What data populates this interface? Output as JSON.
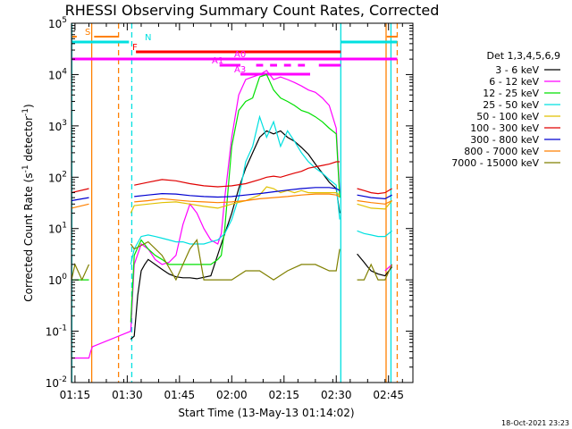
{
  "chart_data": {
    "type": "line",
    "title": "RHESSI Observing Summary Count Rates, Corrected",
    "xlabel": "Start Time (13-May-13 01:14:02)",
    "ylabel_prefix": "Corrected Count Rate (s",
    "ylabel_sup": "-1",
    "ylabel_suffix": " detector",
    "ylabel_close": ")",
    "yscale": "log",
    "xlim_minutes": [
      0,
      98
    ],
    "ylim": [
      0.01,
      100000
    ],
    "x_tick_labels": [
      "01:15",
      "01:30",
      "01:45",
      "02:00",
      "02:15",
      "02:30",
      "02:45"
    ],
    "x_tick_minutes": [
      1,
      16,
      31,
      46,
      61,
      76,
      91
    ],
    "y_tick_labels": [
      {
        "base": "10",
        "exp": "-2"
      },
      {
        "base": "10",
        "exp": "-1"
      },
      {
        "base": "10",
        "exp": "0"
      },
      {
        "base": "10",
        "exp": "1"
      },
      {
        "base": "10",
        "exp": "2"
      },
      {
        "base": "10",
        "exp": "3"
      },
      {
        "base": "10",
        "exp": "4"
      },
      {
        "base": "10",
        "exp": "5"
      }
    ],
    "legend_title": "Det 1,3,4,5,6,9",
    "series": [
      {
        "name": "3 - 6 keV",
        "color": "#000000",
        "x": [
          0,
          6,
          7,
          17,
          18,
          19,
          20,
          21,
          22,
          26,
          28,
          30,
          32,
          34,
          36,
          40,
          43,
          46,
          48,
          50,
          52,
          54,
          56,
          58,
          60,
          62,
          64,
          66,
          68,
          70,
          72,
          74,
          76,
          77,
          78,
          80,
          82,
          84,
          85,
          86,
          88,
          90,
          92,
          95
        ],
        "y": [
          null,
          null,
          null,
          0.07,
          0.08,
          0.5,
          1.5,
          2.0,
          2.5,
          1.6,
          1.3,
          1.15,
          1.1,
          1.1,
          1.05,
          1.2,
          5,
          20,
          60,
          150,
          300,
          600,
          800,
          700,
          800,
          600,
          500,
          380,
          280,
          180,
          120,
          80,
          60,
          20,
          null,
          null,
          3.2,
          2.2,
          1.8,
          1.5,
          1.3,
          1.2,
          1.8,
          null
        ]
      },
      {
        "name": "6 - 12 keV",
        "color": "#ff00ff",
        "x": [
          0,
          1,
          5,
          5.5,
          6,
          17,
          18,
          20,
          22,
          24,
          26,
          28,
          30,
          32,
          34,
          36,
          38,
          40,
          42,
          43,
          44,
          46,
          48,
          50,
          52,
          54,
          56,
          58,
          60,
          62,
          64,
          66,
          68,
          70,
          72,
          74,
          76,
          77,
          78,
          80,
          84,
          90,
          92
        ],
        "y": [
          0.03,
          0.03,
          0.03,
          0.04,
          0.05,
          0.1,
          2,
          5,
          4,
          2.5,
          2,
          2.2,
          3,
          12,
          30,
          20,
          10,
          6,
          5,
          8,
          40,
          600,
          4000,
          8000,
          9000,
          10000,
          12000,
          8000,
          9000,
          8000,
          7000,
          6000,
          5000,
          4500,
          3500,
          2500,
          900,
          50,
          null,
          null,
          null,
          1.5,
          2
        ]
      },
      {
        "name": "12 - 25 keV",
        "color": "#00e000",
        "x": [
          0,
          1,
          5,
          5.5,
          6,
          17,
          18,
          20,
          22,
          24,
          26,
          28,
          30,
          32,
          34,
          36,
          38,
          40,
          42,
          43,
          44,
          46,
          48,
          50,
          52,
          54,
          56,
          58,
          60,
          62,
          64,
          66,
          68,
          70,
          72,
          74,
          76,
          77
        ],
        "y": [
          1,
          1,
          1,
          null,
          null,
          0.15,
          3,
          6,
          4,
          3,
          2.5,
          2,
          2,
          2,
          2,
          2,
          2,
          2,
          2.5,
          3,
          10,
          400,
          2000,
          3000,
          3500,
          9000,
          10000,
          5000,
          3500,
          3000,
          2500,
          2000,
          1800,
          1500,
          1200,
          900,
          700,
          40
        ]
      },
      {
        "name": "25 - 50 keV",
        "color": "#00e0e0",
        "x": [
          17,
          18,
          20,
          22,
          24,
          26,
          28,
          30,
          32,
          34,
          36,
          38,
          40,
          42,
          44,
          46,
          48,
          50,
          52,
          54,
          56,
          58,
          60,
          62,
          64,
          66,
          68,
          70,
          72,
          74,
          76,
          77,
          78,
          80,
          82,
          84,
          86,
          88,
          90,
          92
        ],
        "y": [
          2,
          4,
          7,
          7.5,
          7,
          6.5,
          6,
          5.5,
          5.5,
          5,
          5,
          5,
          5.5,
          6,
          8,
          15,
          40,
          200,
          400,
          1500,
          600,
          1200,
          400,
          800,
          500,
          300,
          200,
          150,
          120,
          90,
          70,
          15,
          null,
          null,
          9,
          8,
          7.5,
          7,
          7,
          9
        ]
      },
      {
        "name": "50 - 100 keV",
        "color": "#e0c000",
        "x": [
          17,
          18,
          22,
          26,
          30,
          34,
          38,
          42,
          46,
          50,
          54,
          56,
          58,
          60,
          62,
          64,
          66,
          68,
          70,
          72,
          74,
          76,
          77,
          78,
          80,
          82,
          86,
          90,
          92
        ],
        "y": [
          20,
          28,
          30,
          32,
          33,
          30,
          27,
          25,
          30,
          35,
          45,
          65,
          60,
          50,
          55,
          50,
          55,
          50,
          50,
          50,
          50,
          50,
          45,
          null,
          null,
          30,
          25,
          24,
          35
        ]
      },
      {
        "name": "100 - 300 keV",
        "color": "#e00000",
        "x": [
          0,
          5,
          6,
          17,
          18,
          22,
          26,
          30,
          34,
          38,
          42,
          46,
          50,
          54,
          56,
          58,
          60,
          62,
          64,
          66,
          68,
          70,
          72,
          74,
          76,
          77,
          78,
          80,
          82,
          84,
          86,
          88,
          90,
          92
        ],
        "y": [
          50,
          60,
          null,
          null,
          70,
          80,
          90,
          85,
          75,
          68,
          65,
          68,
          75,
          90,
          100,
          105,
          100,
          110,
          120,
          130,
          150,
          160,
          170,
          180,
          200,
          200,
          null,
          null,
          60,
          55,
          50,
          48,
          50,
          60
        ]
      },
      {
        "name": "300 - 800 keV",
        "color": "#0000d0",
        "x": [
          0,
          5,
          6,
          17,
          18,
          22,
          26,
          30,
          34,
          38,
          42,
          46,
          50,
          54,
          58,
          62,
          66,
          70,
          74,
          76,
          77,
          78,
          80,
          82,
          86,
          90,
          92
        ],
        "y": [
          35,
          40,
          null,
          null,
          42,
          45,
          48,
          47,
          44,
          42,
          41,
          42,
          45,
          48,
          52,
          56,
          60,
          63,
          63,
          60,
          55,
          null,
          null,
          45,
          40,
          38,
          45
        ]
      },
      {
        "name": "800 - 7000 keV",
        "color": "#ff8000",
        "x": [
          0,
          5,
          6,
          17,
          18,
          22,
          26,
          30,
          34,
          38,
          42,
          46,
          50,
          54,
          58,
          62,
          66,
          70,
          74,
          76,
          77,
          78,
          80,
          82,
          86,
          90,
          92
        ],
        "y": [
          25,
          30,
          null,
          null,
          33,
          35,
          38,
          36,
          34,
          33,
          32,
          33,
          35,
          38,
          40,
          42,
          45,
          47,
          47,
          45,
          42,
          null,
          null,
          35,
          32,
          30,
          35
        ]
      },
      {
        "name": "7000 - 15000 keV",
        "color": "#808000",
        "x": [
          0,
          1,
          3,
          5,
          5.5,
          6,
          17,
          18,
          22,
          26,
          30,
          34,
          36,
          38,
          42,
          46,
          50,
          54,
          58,
          62,
          66,
          70,
          74,
          76,
          77,
          78,
          80,
          82,
          84,
          86,
          88,
          90,
          92
        ],
        "y": [
          1.0,
          2.0,
          1.0,
          2.0,
          null,
          null,
          5,
          4,
          5.5,
          3,
          1,
          4,
          6,
          1,
          1,
          1,
          1.5,
          1.5,
          1,
          1.5,
          2,
          2,
          1.5,
          1.5,
          4,
          null,
          null,
          1,
          1,
          2,
          1,
          1,
          2
        ]
      }
    ],
    "vertical_lines": [
      {
        "minute": 0.1,
        "color": "#00e0e0",
        "style": "solid"
      },
      {
        "minute": 5.8,
        "color": "#ff8000",
        "style": "solid"
      },
      {
        "minute": 13.5,
        "color": "#ff8000",
        "style": "dashed"
      },
      {
        "minute": 17.3,
        "color": "#00e0e0",
        "style": "dashed"
      },
      {
        "minute": 77.3,
        "color": "#00e0e0",
        "style": "solid"
      },
      {
        "minute": 90.3,
        "color": "#ff8000",
        "style": "solid"
      },
      {
        "minute": 91.7,
        "color": "#00e0e0",
        "style": "solid"
      },
      {
        "minute": 93.5,
        "color": "#ff8000",
        "style": "dashed"
      }
    ],
    "flag_bars": [
      {
        "label": "S",
        "color": "#ff8000",
        "segments": [
          [
            0.2,
            1.5
          ],
          [
            6.5,
            13.5
          ],
          [
            90.5,
            93.5
          ]
        ]
      },
      {
        "label": "N",
        "color": "#00e0e0",
        "segments": [
          [
            0.2,
            16.5
          ],
          [
            77.3,
            93.5
          ]
        ]
      },
      {
        "label": "F",
        "color": "#ff0000",
        "segments": [
          [
            18.5,
            77.3
          ]
        ]
      },
      {
        "label": "A0",
        "color": "#ff00ff",
        "segments": [
          [
            0.2,
            93.5
          ]
        ]
      },
      {
        "label": "A1",
        "color": "#ff00ff",
        "segments": [
          [
            42.5,
            48.5
          ],
          [
            53,
            55
          ],
          [
            57,
            59
          ],
          [
            61,
            63
          ],
          [
            65,
            67
          ],
          [
            71,
            77.3
          ]
        ]
      },
      {
        "label": "A3",
        "color": "#ff00ff",
        "segments": [
          [
            48.5,
            68.5
          ]
        ]
      }
    ]
  },
  "footer": {
    "timestamp": "18-Oct-2021 23:23"
  }
}
